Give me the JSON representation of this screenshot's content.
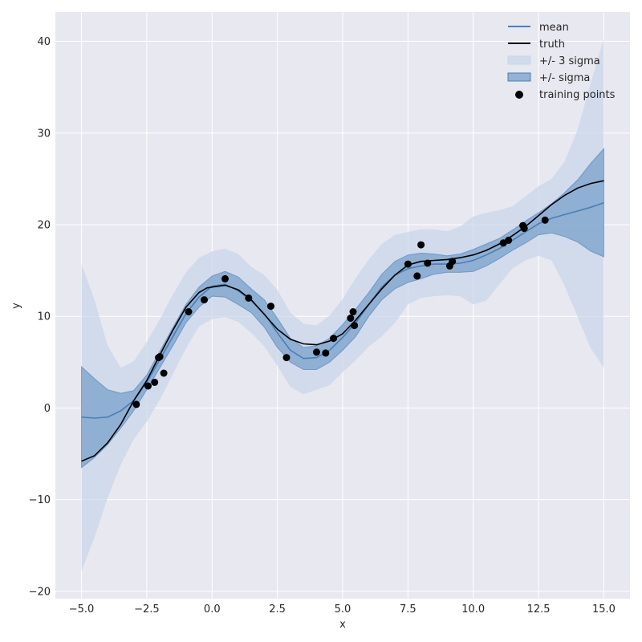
{
  "chart_data": {
    "type": "line",
    "title": "",
    "xlabel": "x",
    "ylabel": "y",
    "xlim": [
      -6.0,
      16.0
    ],
    "ylim": [
      -20.8,
      43.2
    ],
    "x_ticks": [
      -5.0,
      -2.5,
      0.0,
      2.5,
      5.0,
      7.5,
      10.0,
      12.5,
      15.0
    ],
    "x_tick_labels": [
      "−5.0",
      "−2.5",
      "0.0",
      "2.5",
      "5.0",
      "7.5",
      "10.0",
      "12.5",
      "15.0"
    ],
    "y_ticks": [
      -20,
      -10,
      0,
      10,
      20,
      30,
      40
    ],
    "y_tick_labels": [
      "−20",
      "−10",
      "0",
      "10",
      "20",
      "30",
      "40"
    ],
    "grid": true,
    "background": "#e8e8f0",
    "legend_position": "top-right",
    "legend": [
      "mean",
      "truth",
      "+/- 3 sigma",
      "+/- sigma",
      "training points"
    ],
    "colors": {
      "mean": "#4a7fb5",
      "truth": "#000000",
      "sigma3": "#c9d6ea",
      "sigma1": "#7ea4cd",
      "points": "#000000"
    },
    "series": [
      {
        "name": "mean",
        "x": [
          -5,
          -4.5,
          -4,
          -3.5,
          -3,
          -2.5,
          -2,
          -1.5,
          -1,
          -0.5,
          0,
          0.5,
          1,
          1.5,
          2,
          2.5,
          3,
          3.5,
          4,
          4.5,
          5,
          5.5,
          6,
          6.5,
          7,
          7.5,
          8,
          8.5,
          9,
          9.5,
          10,
          10.5,
          11,
          11.5,
          12,
          12.5,
          13,
          13.5,
          14,
          14.5,
          15
        ],
        "y": [
          -1.0,
          -1.1,
          -1.0,
          -0.3,
          0.8,
          2.8,
          5.3,
          7.8,
          10.3,
          12.1,
          13.3,
          13.5,
          12.8,
          11.7,
          10.3,
          8.2,
          6.3,
          5.4,
          5.5,
          6.3,
          7.7,
          9.3,
          11.3,
          13.2,
          14.5,
          15.2,
          15.5,
          15.7,
          15.7,
          15.8,
          16.1,
          16.7,
          17.4,
          18.3,
          19.2,
          20.1,
          20.7,
          21.1,
          21.5,
          21.9,
          22.4
        ]
      },
      {
        "name": "truth",
        "x": [
          -5,
          -4.5,
          -4,
          -3.5,
          -3,
          -2.5,
          -2,
          -1.5,
          -1,
          -0.5,
          -0.2,
          0,
          0.5,
          1,
          1.5,
          2,
          2.5,
          3,
          3.5,
          4,
          4.5,
          5,
          5.5,
          6,
          6.5,
          7,
          7.5,
          8,
          8.5,
          9,
          9.5,
          10,
          10.5,
          11,
          11.5,
          12,
          12.5,
          13,
          13.5,
          14,
          14.5,
          15
        ],
        "y": [
          -5.8,
          -5.2,
          -3.8,
          -1.8,
          0.8,
          3.0,
          5.8,
          8.5,
          11.0,
          12.6,
          13.1,
          13.2,
          13.4,
          12.9,
          11.8,
          10.2,
          8.6,
          7.5,
          7.0,
          6.9,
          7.3,
          8.1,
          9.6,
          11.3,
          13.0,
          14.5,
          15.6,
          16.0,
          16.1,
          16.2,
          16.4,
          16.7,
          17.2,
          17.9,
          18.8,
          19.8,
          21.0,
          22.2,
          23.2,
          24.0,
          24.5,
          24.8
        ]
      },
      {
        "name": "+/- sigma",
        "x": [
          -5,
          -4.5,
          -4,
          -3.5,
          -3,
          -2.5,
          -2,
          -1.5,
          -1,
          -0.5,
          0,
          0.5,
          1,
          1.5,
          2,
          2.5,
          3,
          3.5,
          4,
          4.5,
          5,
          5.5,
          6,
          6.5,
          7,
          7.5,
          8,
          8.5,
          9,
          9.5,
          10,
          10.5,
          11,
          11.5,
          12,
          12.5,
          13,
          13.5,
          14,
          14.5,
          15
        ],
        "upper": [
          4.5,
          3.2,
          2.0,
          1.6,
          1.9,
          3.6,
          6.2,
          8.8,
          11.3,
          13.2,
          14.4,
          14.9,
          14.3,
          13.0,
          11.8,
          9.8,
          7.6,
          6.6,
          6.8,
          7.6,
          9.1,
          10.8,
          12.6,
          14.6,
          16.0,
          16.7,
          16.9,
          16.8,
          16.6,
          16.8,
          17.3,
          17.9,
          18.5,
          19.4,
          20.4,
          21.3,
          22.3,
          23.5,
          24.9,
          26.7,
          28.3
        ]
      },
      {
        "name": "+/- 3 sigma",
        "x": [
          -5,
          -4.5,
          -4,
          -3.5,
          -3,
          -2.5,
          -2,
          -1.5,
          -1,
          -0.5,
          0,
          0.5,
          1,
          1.5,
          2,
          2.5,
          3,
          3.5,
          4,
          4.5,
          5,
          5.5,
          6,
          6.5,
          7,
          7.5,
          8,
          8.5,
          9,
          9.5,
          10,
          10.5,
          11,
          11.5,
          12,
          12.5,
          13,
          13.5,
          14,
          14.5,
          15
        ],
        "upper": [
          15.7,
          11.8,
          6.8,
          4.4,
          5.1,
          7.2,
          9.7,
          12.4,
          14.8,
          16.4,
          17.1,
          17.4,
          16.8,
          15.4,
          14.5,
          12.9,
          10.4,
          9.2,
          9.0,
          10.1,
          11.9,
          14.2,
          16.2,
          17.9,
          18.9,
          19.2,
          19.5,
          19.5,
          19.3,
          19.8,
          20.9,
          21.3,
          21.6,
          22.0,
          23.1,
          24.2,
          25.0,
          26.9,
          30.4,
          35.5,
          40.3
        ],
        "lower": [
          -17.8,
          -14.1,
          -9.8,
          -6.2,
          -3.4,
          -1.5,
          0.9,
          3.7,
          6.5,
          8.9,
          9.7,
          9.9,
          9.4,
          8.2,
          6.7,
          4.6,
          2.3,
          1.5,
          2.0,
          2.5,
          3.9,
          5.2,
          6.7,
          7.8,
          9.3,
          11.3,
          12.0,
          12.2,
          12.3,
          12.2,
          11.3,
          11.7,
          13.5,
          15.2,
          16.1,
          16.6,
          16.1,
          13.3,
          9.9,
          6.5,
          4.4
        ]
      }
    ],
    "training_points": {
      "name": "training points",
      "x": [
        -2.9,
        -2.45,
        -2.2,
        -2.05,
        -2.0,
        -1.85,
        -0.9,
        -0.3,
        0.5,
        1.4,
        2.25,
        2.85,
        4.0,
        4.35,
        4.65,
        5.3,
        5.4,
        5.45,
        7.5,
        7.85,
        8.0,
        8.25,
        9.1,
        9.2,
        11.15,
        11.35,
        11.9,
        11.95,
        12.75
      ],
      "y": [
        0.4,
        2.4,
        2.8,
        5.5,
        5.6,
        3.8,
        10.5,
        11.8,
        14.1,
        12.0,
        11.1,
        5.5,
        6.1,
        6.0,
        7.6,
        9.8,
        10.5,
        9.0,
        15.7,
        14.4,
        17.8,
        15.8,
        15.5,
        16.0,
        18.0,
        18.3,
        19.9,
        19.6,
        20.5
      ]
    }
  }
}
